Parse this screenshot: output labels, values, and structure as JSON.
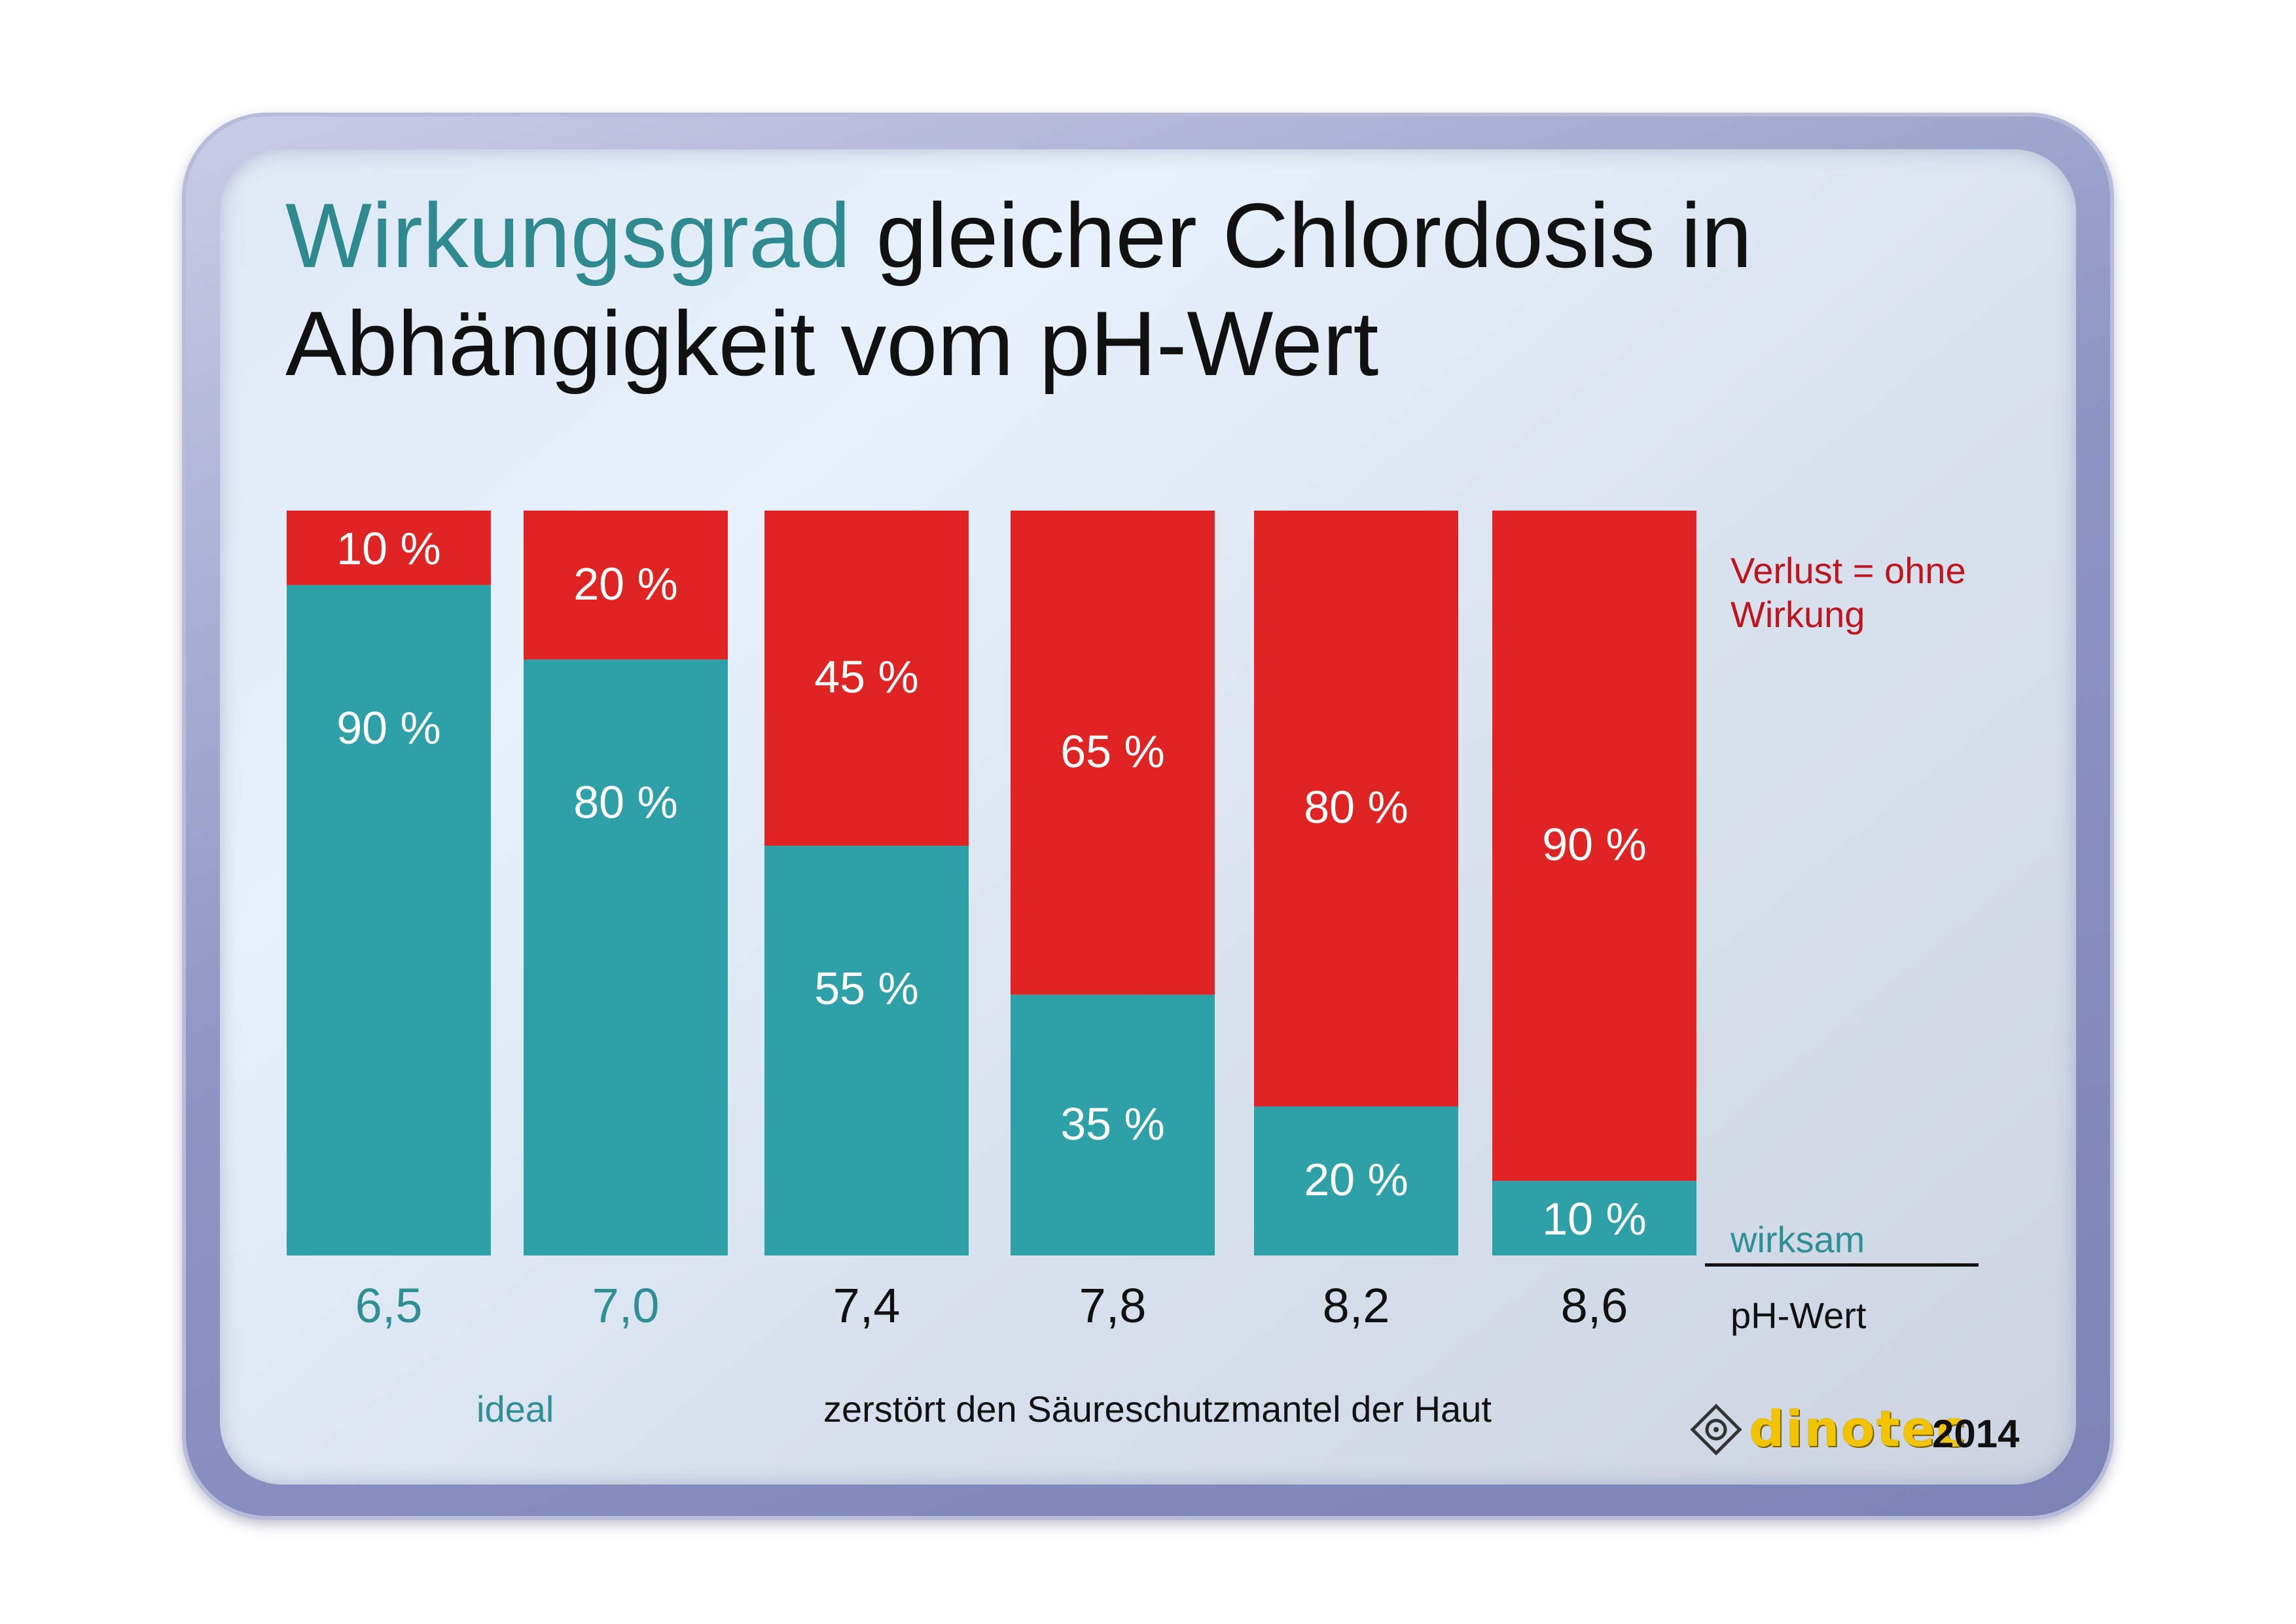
{
  "title": {
    "line1_accent": "Wirkungsgrad",
    "line1_rest": " gleicher Chlordosis in",
    "line2": "Abhängigkeit vom pH-Wert"
  },
  "labels": {
    "loss_line1": "Verlust = ohne",
    "loss_line2": "Wirkung",
    "effective": "wirksam",
    "ph": "pH-Wert"
  },
  "notes": {
    "ideal": "ideal",
    "skin": "zerstört den Säureschutzmantel der Haut"
  },
  "logo": {
    "brand": "dinotec",
    "year": "2014"
  },
  "colors": {
    "effective": "#2ea0a8",
    "loss": "#e02424",
    "accent_text": "#2e8a8f",
    "tick_ideal": "#2e8f95",
    "tick_default": "#111111"
  },
  "chart_data": {
    "type": "bar",
    "stacked": true,
    "categories": [
      "6,5",
      "7,0",
      "7,4",
      "7,8",
      "8,2",
      "8,6"
    ],
    "category_highlight": [
      true,
      true,
      false,
      false,
      false,
      false
    ],
    "series": [
      {
        "name": "wirksam",
        "values": [
          90,
          80,
          55,
          35,
          20,
          10
        ]
      },
      {
        "name": "Verlust = ohne Wirkung",
        "values": [
          10,
          20,
          45,
          65,
          80,
          90
        ]
      }
    ],
    "value_labels": {
      "effective": [
        "90 %",
        "80 %",
        "55 %",
        "35 %",
        "20 %",
        "10 %"
      ],
      "loss": [
        "10 %",
        "20 %",
        "45 %",
        "65 %",
        "80 %",
        "90 %"
      ]
    },
    "title": "Wirkungsgrad gleicher Chlordosis in Abhängigkeit vom pH-Wert",
    "xlabel": "pH-Wert",
    "ylim": [
      0,
      100
    ]
  }
}
